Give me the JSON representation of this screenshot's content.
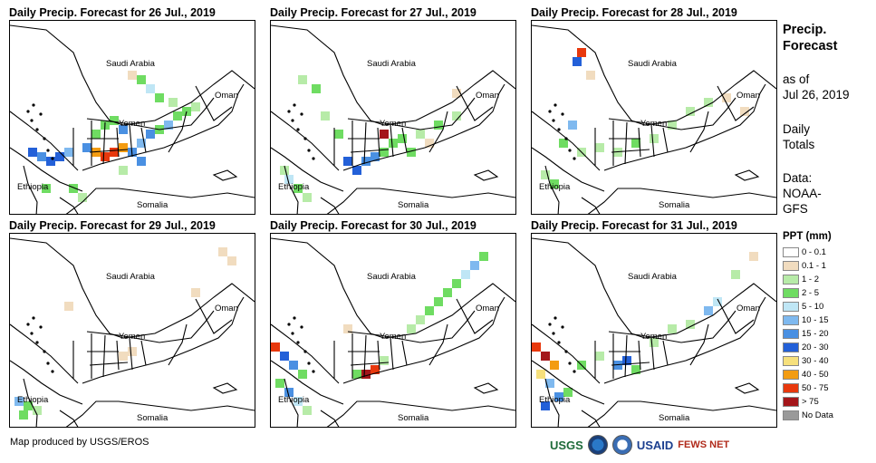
{
  "panels": [
    {
      "title": "Daily Precip. Forecast for 26 Jul., 2019",
      "labels": {
        "saudi": "Saudi Arabia",
        "oman": "Oman",
        "yemen": "Yemen",
        "ethiopia": "Ethiopia",
        "somalia": "Somalia"
      }
    },
    {
      "title": "Daily Precip. Forecast for 27 Jul., 2019",
      "labels": {
        "saudi": "Saudi Arabia",
        "oman": "Oman",
        "yemen": "Yemen",
        "ethiopia": "Ethiopia",
        "somalia": "Somalia"
      }
    },
    {
      "title": "Daily Precip. Forecast for 28 Jul., 2019",
      "labels": {
        "saudi": "Saudi Arabia",
        "oman": "Oman",
        "yemen": "Yemen",
        "ethiopia": "Ethiopia",
        "somalia": "Somalia"
      }
    },
    {
      "title": "Daily Precip. Forecast for 29 Jul., 2019",
      "labels": {
        "saudi": "Saudi Arabia",
        "oman": "Oman",
        "yemen": "Yemen",
        "ethiopia": "Ethiopia",
        "somalia": "Somalia"
      }
    },
    {
      "title": "Daily Precip. Forecast for 30 Jul., 2019",
      "labels": {
        "saudi": "Saudi Arabia",
        "oman": "Oman",
        "yemen": "Yemen",
        "ethiopia": "Ethiopia",
        "somalia": "Somalia"
      }
    },
    {
      "title": "Daily Precip. Forecast for 31 Jul., 2019",
      "labels": {
        "saudi": "Saudi Arabia",
        "oman": "Oman",
        "yemen": "Yemen",
        "ethiopia": "Ethiopia",
        "somalia": "Somalia"
      }
    }
  ],
  "sidebar": {
    "title_line1": "Precip.",
    "title_line2": "Forecast",
    "asof_line1": "as of",
    "asof_line2": "Jul 26, 2019",
    "totals_line1": "Daily",
    "totals_line2": "Totals",
    "data_line1": "Data:",
    "data_line2": "NOAA-",
    "data_line3": "GFS"
  },
  "legend": {
    "title": "PPT (mm)",
    "items": [
      {
        "label": "0 - 0.1",
        "color": "#ffffff"
      },
      {
        "label": "0.1 - 1",
        "color": "#f1dcbf"
      },
      {
        "label": "1 - 2",
        "color": "#b7eba8"
      },
      {
        "label": "2 - 5",
        "color": "#6fdc62"
      },
      {
        "label": "5 - 10",
        "color": "#bfe6f5"
      },
      {
        "label": "10 - 15",
        "color": "#7fb9ef"
      },
      {
        "label": "15 - 20",
        "color": "#4a90e2"
      },
      {
        "label": "20 - 30",
        "color": "#2360d8"
      },
      {
        "label": "30 - 40",
        "color": "#f6e07c"
      },
      {
        "label": "40 - 50",
        "color": "#f39c12"
      },
      {
        "label": "50 - 75",
        "color": "#e8380d"
      },
      {
        "label": "> 75",
        "color": "#a4161a"
      },
      {
        "label": "No Data",
        "color": "#9a9a9a"
      }
    ]
  },
  "credit": "Map produced by USGS/EROS",
  "logos": {
    "usgs": "USGS",
    "usaid": "USAID",
    "fews": "FEWS NET"
  }
}
